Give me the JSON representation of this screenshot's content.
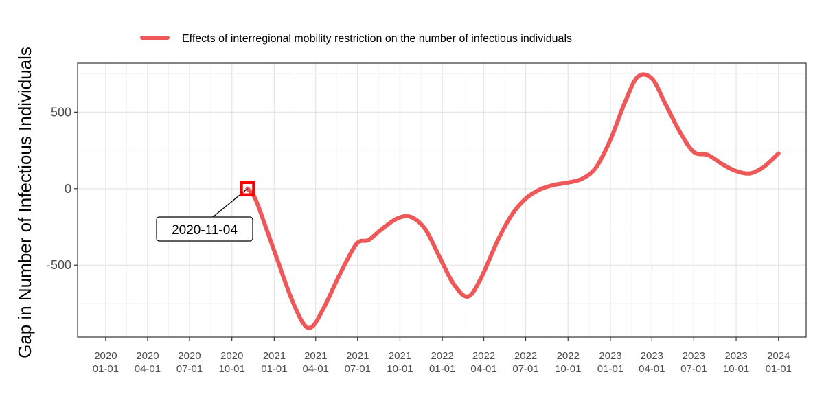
{
  "chart_data": {
    "type": "line",
    "ylabel": "Gap in Number of Infectious Individuals",
    "xlabel": "",
    "ylim": [
      -970,
      820
    ],
    "xlim": [
      "2019-11-01",
      "2024-03-01"
    ],
    "grid": true,
    "legend_position": "top",
    "x_ticks": [
      {
        "date": "2020-01-01",
        "label": [
          "2020",
          "01-01"
        ]
      },
      {
        "date": "2020-04-01",
        "label": [
          "2020",
          "04-01"
        ]
      },
      {
        "date": "2020-07-01",
        "label": [
          "2020",
          "07-01"
        ]
      },
      {
        "date": "2020-10-01",
        "label": [
          "2020",
          "10-01"
        ]
      },
      {
        "date": "2021-01-01",
        "label": [
          "2021",
          "01-01"
        ]
      },
      {
        "date": "2021-04-01",
        "label": [
          "2021",
          "04-01"
        ]
      },
      {
        "date": "2021-07-01",
        "label": [
          "2021",
          "07-01"
        ]
      },
      {
        "date": "2021-10-01",
        "label": [
          "2021",
          "10-01"
        ]
      },
      {
        "date": "2022-01-01",
        "label": [
          "2022",
          "01-01"
        ]
      },
      {
        "date": "2022-04-01",
        "label": [
          "2022",
          "04-01"
        ]
      },
      {
        "date": "2022-07-01",
        "label": [
          "2022",
          "07-01"
        ]
      },
      {
        "date": "2022-10-01",
        "label": [
          "2022",
          "10-01"
        ]
      },
      {
        "date": "2023-01-01",
        "label": [
          "2023",
          "01-01"
        ]
      },
      {
        "date": "2023-04-01",
        "label": [
          "2023",
          "04-01"
        ]
      },
      {
        "date": "2023-07-01",
        "label": [
          "2023",
          "07-01"
        ]
      },
      {
        "date": "2023-10-01",
        "label": [
          "2023",
          "10-01"
        ]
      },
      {
        "date": "2024-01-01",
        "label": [
          "2024",
          "01-01"
        ]
      }
    ],
    "y_ticks": [
      500,
      0,
      -500
    ],
    "y_tick_labels": [
      "500",
      "0",
      "-500"
    ],
    "series": [
      {
        "name": "Effects of interregional mobility restriction on the number of infectious individuals",
        "color": "#ee5859",
        "points": [
          [
            "2020-11-04",
            0
          ],
          [
            "2020-11-20",
            -60
          ],
          [
            "2020-12-10",
            -220
          ],
          [
            "2021-01-05",
            -440
          ],
          [
            "2021-02-05",
            -700
          ],
          [
            "2021-03-05",
            -880
          ],
          [
            "2021-03-25",
            -900
          ],
          [
            "2021-04-20",
            -770
          ],
          [
            "2021-05-20",
            -580
          ],
          [
            "2021-06-20",
            -400
          ],
          [
            "2021-07-05",
            -345
          ],
          [
            "2021-07-25",
            -335
          ],
          [
            "2021-08-20",
            -270
          ],
          [
            "2021-09-25",
            -195
          ],
          [
            "2021-10-25",
            -185
          ],
          [
            "2021-11-25",
            -265
          ],
          [
            "2021-12-25",
            -440
          ],
          [
            "2022-01-25",
            -620
          ],
          [
            "2022-02-25",
            -705
          ],
          [
            "2022-03-25",
            -590
          ],
          [
            "2022-05-01",
            -340
          ],
          [
            "2022-06-01",
            -170
          ],
          [
            "2022-07-01",
            -65
          ],
          [
            "2022-08-01",
            -5
          ],
          [
            "2022-09-01",
            25
          ],
          [
            "2022-10-01",
            40
          ],
          [
            "2022-11-01",
            65
          ],
          [
            "2022-12-01",
            140
          ],
          [
            "2023-01-01",
            320
          ],
          [
            "2023-02-01",
            560
          ],
          [
            "2023-03-01",
            730
          ],
          [
            "2023-04-01",
            720
          ],
          [
            "2023-05-01",
            550
          ],
          [
            "2023-06-01",
            370
          ],
          [
            "2023-07-01",
            240
          ],
          [
            "2023-08-01",
            220
          ],
          [
            "2023-09-01",
            160
          ],
          [
            "2023-10-01",
            115
          ],
          [
            "2023-11-01",
            100
          ],
          [
            "2023-12-01",
            145
          ],
          [
            "2024-01-01",
            230
          ]
        ]
      }
    ],
    "annotations": [
      {
        "date": "2020-11-04",
        "value": 0,
        "text": "2020-11-04",
        "marker_color": "#ff0000"
      }
    ]
  },
  "legend": {
    "label": "Effects of interregional mobility restriction on the number of infectious individuals"
  }
}
